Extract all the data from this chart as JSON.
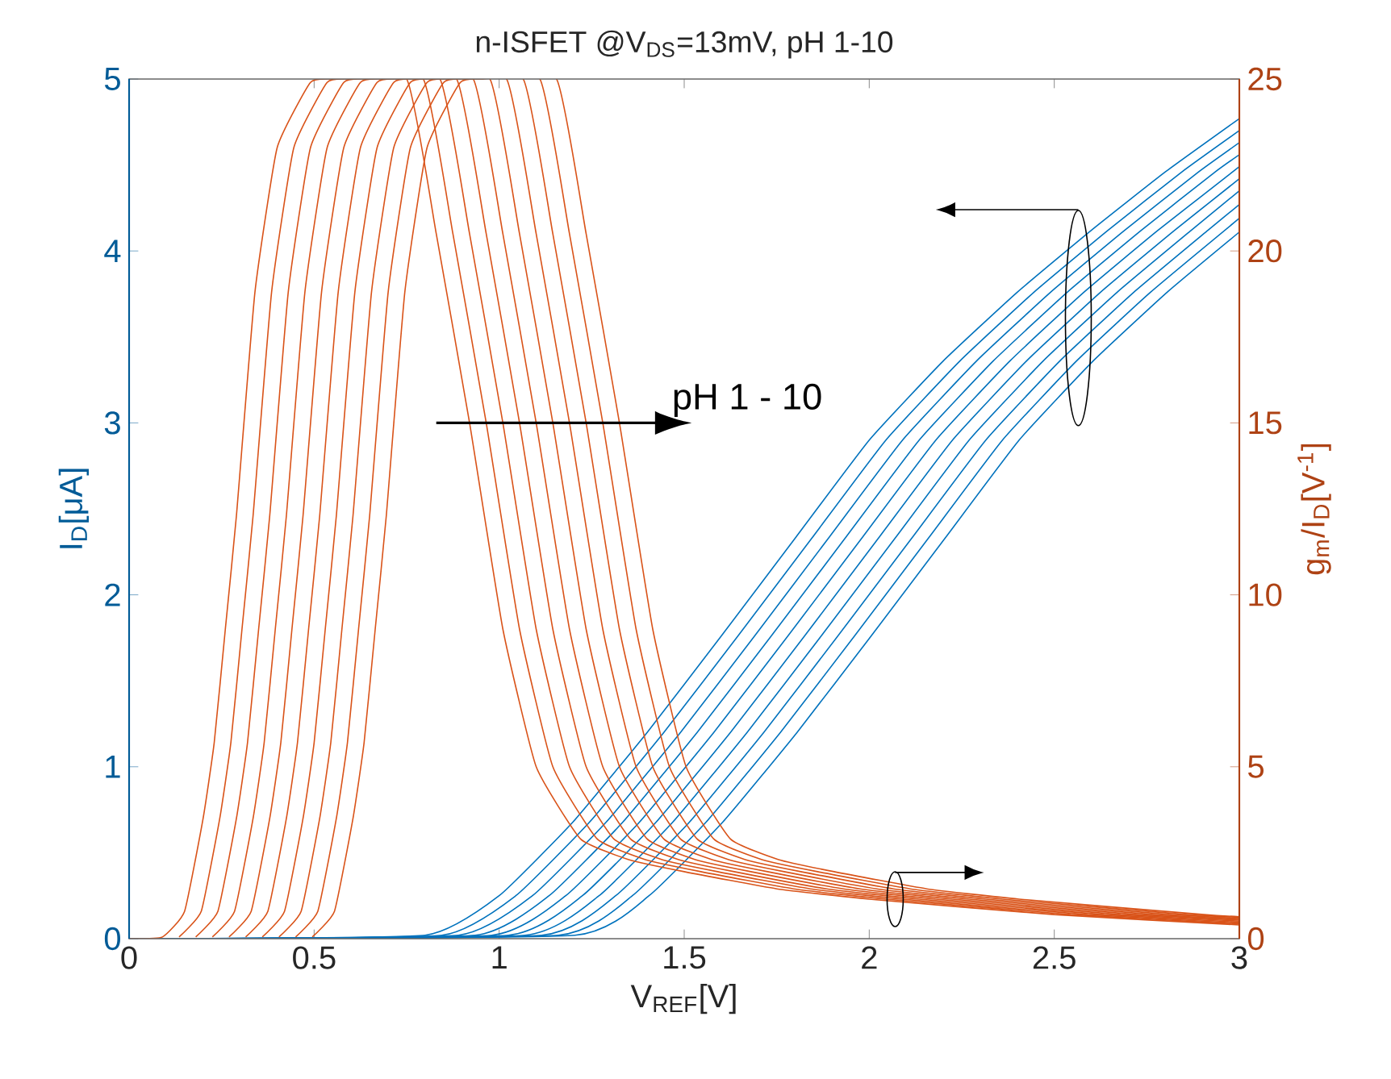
{
  "chart_data": {
    "type": "line",
    "title": "n-ISFET @V$_{DS}$=13mV, pH 1-10",
    "xlabel": "V$_{REF}$[V]",
    "ylabel": "I$_{D}$[μA]",
    "y2label": "g$_{m}$/I$_{D}$[V$^{-1}$]",
    "annotations": [
      "pH 1 - 10"
    ],
    "xlim": [
      0,
      3
    ],
    "xticks": [
      0,
      0.5,
      1,
      1.5,
      2,
      2.5,
      3
    ],
    "ylim": [
      0,
      5
    ],
    "yticks": [
      0,
      1,
      2,
      3,
      4,
      5
    ],
    "y2lim": [
      0,
      25
    ],
    "y2ticks": [
      0,
      5,
      10,
      15,
      20,
      25
    ],
    "series": [
      {
        "color": "#0072bd",
        "x": [
          0,
          0.8,
          1.0,
          1.2,
          1.4,
          1.6,
          1.8,
          2.0,
          2.2,
          2.4,
          2.6,
          2.8,
          3
        ],
        "values": [
          0,
          0.02,
          0.25,
          0.68,
          1.2,
          1.76,
          2.33,
          2.9,
          3.36,
          3.76,
          4.12,
          4.46,
          4.77
        ]
      },
      {
        "color": "#0072bd",
        "x": [
          0,
          0.845,
          1.045,
          1.245,
          1.445,
          1.645,
          1.845,
          2.045,
          2.245,
          2.445,
          2.645,
          2.845,
          3
        ],
        "values": [
          0,
          0.02,
          0.25,
          0.68,
          1.2,
          1.76,
          2.33,
          2.9,
          3.36,
          3.76,
          4.12,
          4.46,
          4.7
        ]
      },
      {
        "color": "#0072bd",
        "x": [
          0,
          0.89,
          1.09,
          1.29,
          1.49,
          1.69,
          1.89,
          2.09,
          2.29,
          2.49,
          2.69,
          2.89,
          3
        ],
        "values": [
          0,
          0.02,
          0.25,
          0.68,
          1.2,
          1.76,
          2.33,
          2.9,
          3.36,
          3.76,
          4.12,
          4.46,
          4.63
        ]
      },
      {
        "color": "#0072bd",
        "x": [
          0,
          0.935,
          1.135,
          1.335,
          1.535,
          1.735,
          1.935,
          2.135,
          2.335,
          2.535,
          2.735,
          2.935,
          3
        ],
        "values": [
          0,
          0.02,
          0.25,
          0.68,
          1.2,
          1.76,
          2.33,
          2.9,
          3.36,
          3.76,
          4.12,
          4.46,
          4.56
        ]
      },
      {
        "color": "#0072bd",
        "x": [
          0,
          0.98,
          1.18,
          1.38,
          1.58,
          1.78,
          1.98,
          2.18,
          2.38,
          2.58,
          2.78,
          3
        ],
        "values": [
          0,
          0.02,
          0.25,
          0.68,
          1.2,
          1.76,
          2.33,
          2.9,
          3.36,
          3.76,
          4.12,
          4.49
        ]
      },
      {
        "color": "#0072bd",
        "x": [
          0,
          1.025,
          1.225,
          1.425,
          1.625,
          1.825,
          2.025,
          2.225,
          2.425,
          2.625,
          2.825,
          3
        ],
        "values": [
          0,
          0.02,
          0.25,
          0.68,
          1.2,
          1.76,
          2.33,
          2.9,
          3.36,
          3.76,
          4.12,
          4.42
        ]
      },
      {
        "color": "#0072bd",
        "x": [
          0,
          1.07,
          1.27,
          1.47,
          1.67,
          1.87,
          2.07,
          2.27,
          2.47,
          2.67,
          2.87,
          3
        ],
        "values": [
          0,
          0.02,
          0.25,
          0.68,
          1.2,
          1.76,
          2.33,
          2.9,
          3.36,
          3.76,
          4.12,
          4.35
        ]
      },
      {
        "color": "#0072bd",
        "x": [
          0,
          1.115,
          1.315,
          1.515,
          1.715,
          1.915,
          2.115,
          2.315,
          2.515,
          2.715,
          2.915,
          3
        ],
        "values": [
          0,
          0.02,
          0.25,
          0.68,
          1.2,
          1.76,
          2.33,
          2.9,
          3.36,
          3.76,
          4.12,
          4.27
        ]
      },
      {
        "color": "#0072bd",
        "x": [
          0,
          1.16,
          1.36,
          1.56,
          1.76,
          1.96,
          2.16,
          2.36,
          2.56,
          2.76,
          3
        ],
        "values": [
          0,
          0.02,
          0.25,
          0.68,
          1.2,
          1.76,
          2.33,
          2.9,
          3.36,
          3.76,
          4.19
        ]
      },
      {
        "color": "#0072bd",
        "x": [
          0,
          1.205,
          1.405,
          1.605,
          1.805,
          2.005,
          2.205,
          2.405,
          2.605,
          2.805,
          3
        ],
        "values": [
          0,
          0.02,
          0.25,
          0.68,
          1.2,
          1.76,
          2.33,
          2.9,
          3.36,
          3.76,
          4.11
        ]
      },
      {
        "color": "#d95319",
        "axis": "y2",
        "x": [
          0,
          0.09,
          0.15,
          0.2,
          0.23,
          0.26,
          0.29,
          0.34,
          0.4,
          0.49,
          0.55,
          0.75,
          0.83,
          0.92,
          1.01,
          1.1,
          1.22,
          1.35,
          1.5,
          1.75,
          2.0,
          2.5,
          3
        ],
        "values": [
          0,
          0.05,
          0.8,
          3.5,
          5.7,
          9,
          12.3,
          18.8,
          23,
          24.9,
          25,
          25,
          20.5,
          15,
          9,
          5,
          2.9,
          2.3,
          1.95,
          1.45,
          1.15,
          0.7,
          0.4
        ]
      },
      {
        "color": "#d95319",
        "axis": "y2",
        "x": [
          0.135,
          0.195,
          0.245,
          0.275,
          0.305,
          0.335,
          0.385,
          0.445,
          0.535,
          0.595,
          0.795,
          0.875,
          0.965,
          1.055,
          1.145,
          1.265,
          1.395,
          1.545,
          1.795,
          2.045,
          2.545,
          3
        ],
        "values": [
          0.05,
          0.8,
          3.5,
          5.7,
          9,
          12.3,
          18.8,
          23,
          24.9,
          25,
          25,
          20.5,
          15,
          9,
          5,
          2.9,
          2.3,
          1.95,
          1.45,
          1.15,
          0.7,
          0.43
        ]
      },
      {
        "color": "#d95319",
        "axis": "y2",
        "x": [
          0.18,
          0.24,
          0.29,
          0.32,
          0.35,
          0.38,
          0.43,
          0.49,
          0.58,
          0.64,
          0.84,
          0.92,
          1.01,
          1.1,
          1.19,
          1.31,
          1.44,
          1.59,
          1.84,
          2.09,
          2.59,
          3
        ],
        "values": [
          0.05,
          0.8,
          3.5,
          5.7,
          9,
          12.3,
          18.8,
          23,
          24.9,
          25,
          25,
          20.5,
          15,
          9,
          5,
          2.9,
          2.3,
          1.95,
          1.45,
          1.15,
          0.7,
          0.45
        ]
      },
      {
        "color": "#d95319",
        "axis": "y2",
        "x": [
          0.225,
          0.285,
          0.335,
          0.365,
          0.395,
          0.425,
          0.475,
          0.535,
          0.625,
          0.685,
          0.885,
          0.965,
          1.055,
          1.145,
          1.235,
          1.355,
          1.485,
          1.635,
          1.885,
          2.135,
          2.635,
          3
        ],
        "values": [
          0.05,
          0.8,
          3.5,
          5.7,
          9,
          12.3,
          18.8,
          23,
          24.9,
          25,
          25,
          20.5,
          15,
          9,
          5,
          2.9,
          2.3,
          1.95,
          1.45,
          1.15,
          0.7,
          0.48
        ]
      },
      {
        "color": "#d95319",
        "axis": "y2",
        "x": [
          0.27,
          0.33,
          0.38,
          0.41,
          0.44,
          0.47,
          0.52,
          0.58,
          0.67,
          0.73,
          0.93,
          1.01,
          1.1,
          1.19,
          1.28,
          1.4,
          1.53,
          1.68,
          1.93,
          2.18,
          2.68,
          3
        ],
        "values": [
          0.05,
          0.8,
          3.5,
          5.7,
          9,
          12.3,
          18.8,
          23,
          24.9,
          25,
          25,
          20.5,
          15,
          9,
          5,
          2.9,
          2.3,
          1.95,
          1.45,
          1.15,
          0.7,
          0.51
        ]
      },
      {
        "color": "#d95319",
        "axis": "y2",
        "x": [
          0.315,
          0.375,
          0.425,
          0.455,
          0.485,
          0.515,
          0.565,
          0.625,
          0.715,
          0.775,
          0.975,
          1.055,
          1.145,
          1.235,
          1.325,
          1.445,
          1.575,
          1.725,
          1.975,
          2.225,
          2.725,
          3
        ],
        "values": [
          0.05,
          0.8,
          3.5,
          5.7,
          9,
          12.3,
          18.8,
          23,
          24.9,
          25,
          25,
          20.5,
          15,
          9,
          5,
          2.9,
          2.3,
          1.95,
          1.45,
          1.15,
          0.7,
          0.54
        ]
      },
      {
        "color": "#d95319",
        "axis": "y2",
        "x": [
          0.36,
          0.42,
          0.47,
          0.5,
          0.53,
          0.56,
          0.61,
          0.67,
          0.76,
          0.82,
          1.02,
          1.1,
          1.19,
          1.28,
          1.37,
          1.49,
          1.62,
          1.77,
          2.02,
          2.27,
          2.77,
          3
        ],
        "values": [
          0.05,
          0.8,
          3.5,
          5.7,
          9,
          12.3,
          18.8,
          23,
          24.9,
          25,
          25,
          20.5,
          15,
          9,
          5,
          2.9,
          2.3,
          1.95,
          1.45,
          1.15,
          0.7,
          0.56
        ]
      },
      {
        "color": "#d95319",
        "axis": "y2",
        "x": [
          0.405,
          0.465,
          0.515,
          0.545,
          0.575,
          0.605,
          0.655,
          0.715,
          0.805,
          0.865,
          1.065,
          1.145,
          1.235,
          1.325,
          1.415,
          1.535,
          1.665,
          1.815,
          2.065,
          2.315,
          2.815,
          3
        ],
        "values": [
          0.05,
          0.8,
          3.5,
          5.7,
          9,
          12.3,
          18.8,
          23,
          24.9,
          25,
          25,
          20.5,
          15,
          9,
          5,
          2.9,
          2.3,
          1.95,
          1.45,
          1.15,
          0.7,
          0.59
        ]
      },
      {
        "color": "#d95319",
        "axis": "y2",
        "x": [
          0.45,
          0.51,
          0.56,
          0.59,
          0.62,
          0.65,
          0.7,
          0.76,
          0.85,
          0.91,
          1.11,
          1.19,
          1.28,
          1.37,
          1.46,
          1.58,
          1.71,
          1.86,
          2.11,
          2.36,
          2.86,
          3
        ],
        "values": [
          0.05,
          0.8,
          3.5,
          5.7,
          9,
          12.3,
          18.8,
          23,
          24.9,
          25,
          25,
          20.5,
          15,
          9,
          5,
          2.9,
          2.3,
          1.95,
          1.45,
          1.15,
          0.7,
          0.62
        ]
      },
      {
        "color": "#d95319",
        "axis": "y2",
        "x": [
          0.495,
          0.555,
          0.605,
          0.635,
          0.665,
          0.695,
          0.745,
          0.805,
          0.895,
          0.955,
          1.155,
          1.235,
          1.325,
          1.415,
          1.505,
          1.625,
          1.755,
          1.905,
          2.155,
          2.405,
          2.905,
          3
        ],
        "values": [
          0.05,
          0.8,
          3.5,
          5.7,
          9,
          12.3,
          18.8,
          23,
          24.9,
          25,
          25,
          20.5,
          15,
          9,
          5,
          2.9,
          2.3,
          1.95,
          1.45,
          1.15,
          0.7,
          0.64
        ]
      }
    ]
  }
}
